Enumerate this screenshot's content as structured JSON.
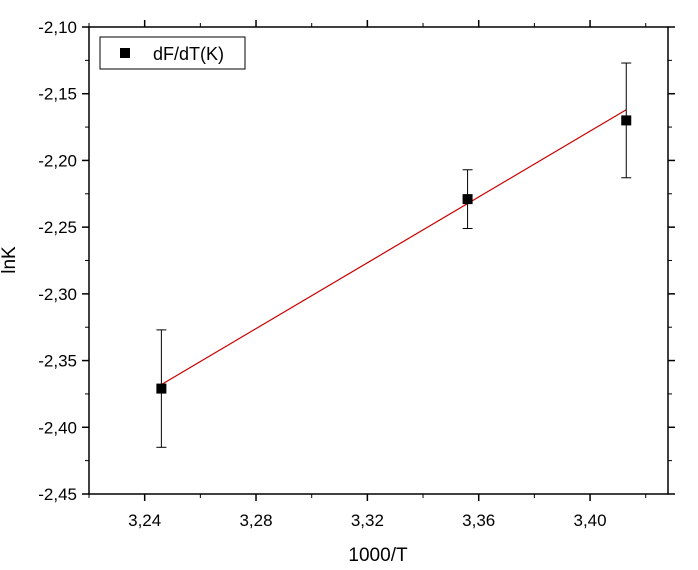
{
  "chart_data": {
    "type": "scatter",
    "xlabel": "1000/T",
    "ylabel": "lnK",
    "xlim": [
      3.22,
      3.428
    ],
    "ylim": [
      -2.45,
      -2.1
    ],
    "x_ticks": [
      3.24,
      3.28,
      3.32,
      3.36,
      3.4
    ],
    "x_tick_labels": [
      "3,24",
      "3,28",
      "3,32",
      "3,36",
      "3,40"
    ],
    "y_ticks": [
      -2.45,
      -2.4,
      -2.35,
      -2.3,
      -2.25,
      -2.2,
      -2.15,
      -2.1
    ],
    "y_tick_labels": [
      "-2,45",
      "-2,40",
      "-2,35",
      "-2,30",
      "-2,25",
      "-2,20",
      "-2,15",
      "-2,10"
    ],
    "grid": false,
    "legend_position": "top-left",
    "series": [
      {
        "name": "dF/dT(K)",
        "marker": "square",
        "color": "#000000",
        "x": [
          3.246,
          3.356,
          3.413
        ],
        "y": [
          -2.371,
          -2.229,
          -2.17
        ],
        "y_error": [
          0.044,
          0.022,
          0.043
        ]
      }
    ],
    "fit_line": {
      "color": "#cc0000",
      "x": [
        3.246,
        3.413
      ],
      "y": [
        -2.368,
        -2.162
      ]
    }
  }
}
